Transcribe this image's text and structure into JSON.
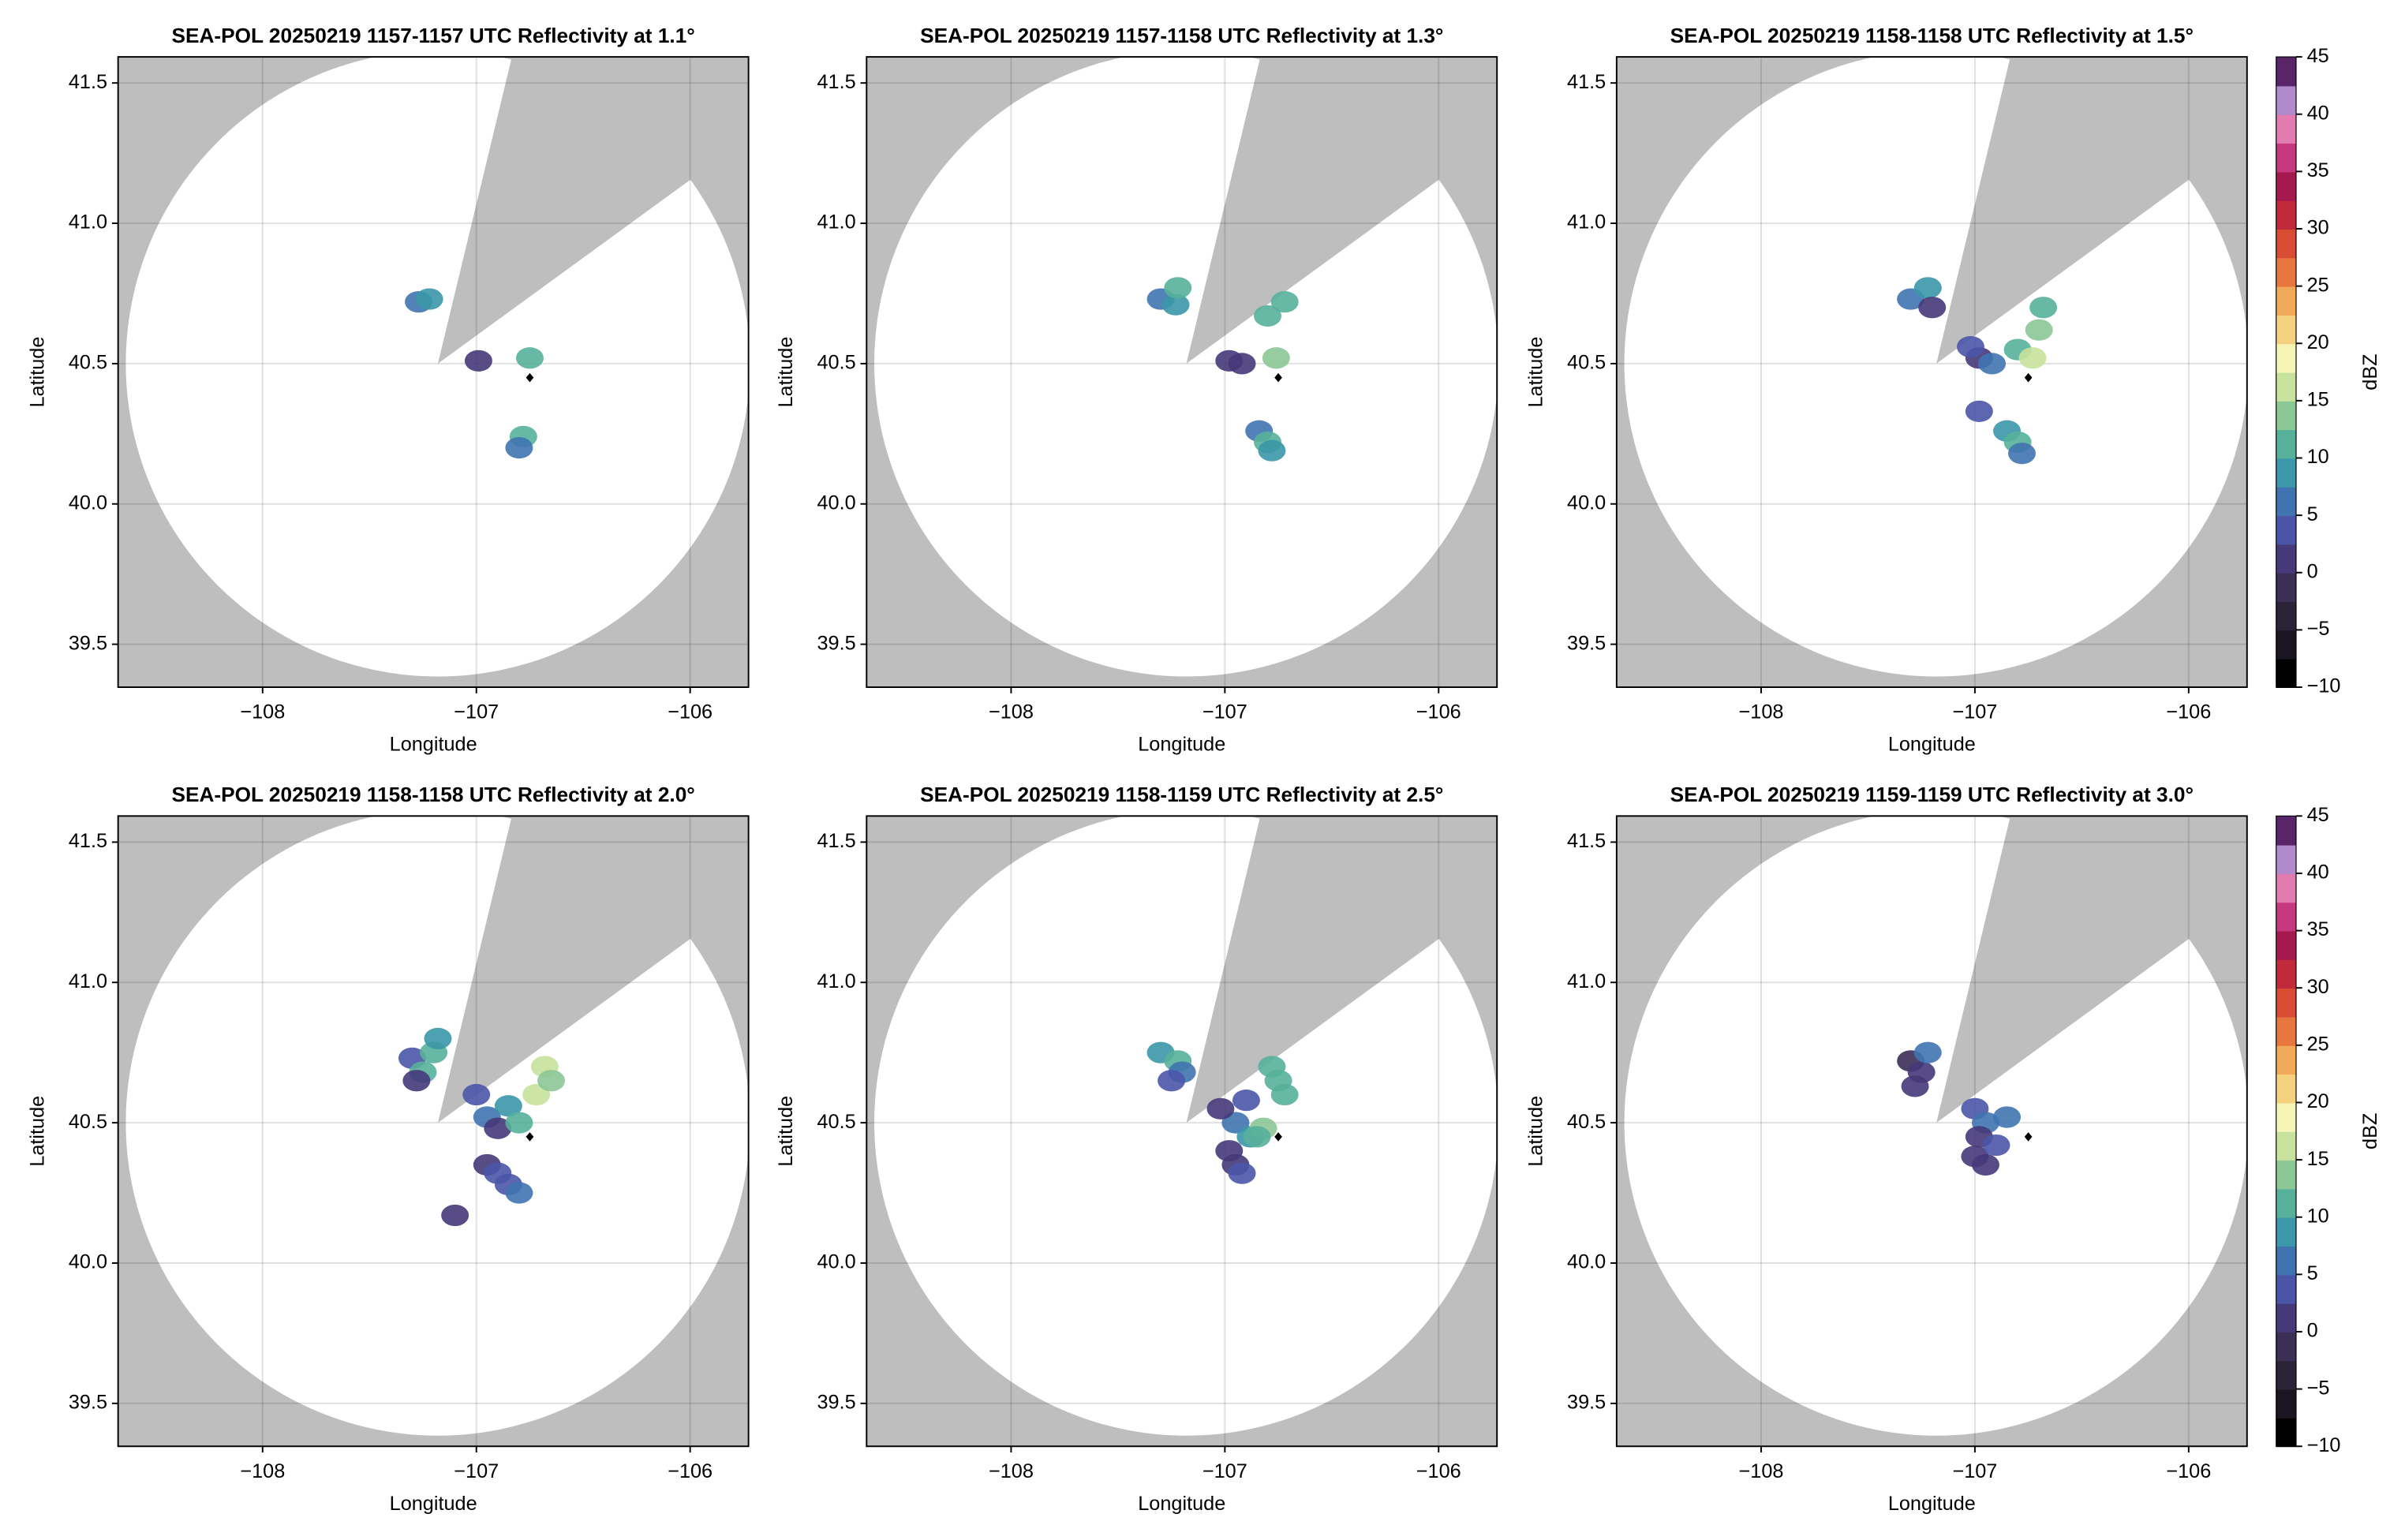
{
  "chart_data": [
    {
      "type": "radar",
      "title": "SEA-POL 20250219 1157-1157 UTC Reflectivity at 1.1°",
      "xlabel": "Longitude",
      "ylabel": "Latitude",
      "xlim": [
        -108.676,
        -105.727
      ],
      "ylim": [
        39.347,
        41.593
      ],
      "xticks": [
        {
          "value": -108,
          "label": "−108"
        },
        {
          "value": -107,
          "label": "−107"
        },
        {
          "value": -106,
          "label": "−106"
        }
      ],
      "yticks": [
        39.5,
        {
          "value": 40,
          "label": "40.0"
        },
        40.5,
        {
          "value": 41,
          "label": "41.0"
        },
        41.5
      ],
      "grid": true,
      "coverage": {
        "center": [
          -107.18,
          40.5
        ],
        "radius_deg": [
          1.46,
          1.115
        ],
        "blocked_azimuth": [
          13.6,
          54
        ]
      },
      "marker": [
        -106.75,
        40.45
      ],
      "echoes": {
        "lon": [
          -107.27,
          -107.22,
          -106.99,
          -106.78,
          -106.8,
          -106.75
        ],
        "lat": [
          40.72,
          40.73,
          40.51,
          40.24,
          40.2,
          40.52
        ],
        "values": [
          5,
          8,
          2,
          10,
          7,
          12
        ]
      }
    },
    {
      "type": "radar",
      "title": "SEA-POL 20250219 1157-1158 UTC Reflectivity at 1.3°",
      "xlabel": "Longitude",
      "ylabel": "Latitude",
      "xlim": [
        -108.676,
        -105.727
      ],
      "ylim": [
        39.347,
        41.593
      ],
      "xticks": [
        {
          "value": -108,
          "label": "−108"
        },
        {
          "value": -107,
          "label": "−107"
        },
        {
          "value": -106,
          "label": "−106"
        }
      ],
      "yticks": [
        39.5,
        {
          "value": 40,
          "label": "40.0"
        },
        40.5,
        {
          "value": 41,
          "label": "41.0"
        },
        41.5
      ],
      "grid": true,
      "coverage": {
        "center": [
          -107.18,
          40.5
        ],
        "radius_deg": [
          1.46,
          1.115
        ],
        "blocked_azimuth": [
          13.6,
          54
        ]
      },
      "marker": [
        -106.75,
        40.45
      ],
      "echoes": {
        "lon": [
          -107.3,
          -107.23,
          -107.22,
          -106.98,
          -106.92,
          -106.76,
          -106.8,
          -106.72,
          -106.84,
          -106.8,
          -106.78
        ],
        "lat": [
          40.73,
          40.71,
          40.77,
          40.51,
          40.5,
          40.52,
          40.67,
          40.72,
          40.26,
          40.22,
          40.19
        ],
        "values": [
          5,
          8,
          10,
          2,
          0,
          14,
          10,
          12,
          5,
          12,
          9
        ]
      }
    },
    {
      "type": "radar",
      "title": "SEA-POL 20250219 1158-1158 UTC Reflectivity at 1.5°",
      "xlabel": "Longitude",
      "ylabel": "Latitude",
      "xlim": [
        -108.676,
        -105.727
      ],
      "ylim": [
        39.347,
        41.593
      ],
      "xticks": [
        {
          "value": -108,
          "label": "−108"
        },
        {
          "value": -107,
          "label": "−107"
        },
        {
          "value": -106,
          "label": "−106"
        }
      ],
      "yticks": [
        39.5,
        {
          "value": 40,
          "label": "40.0"
        },
        40.5,
        {
          "value": 41,
          "label": "41.0"
        },
        41.5
      ],
      "grid": true,
      "coverage": {
        "center": [
          -107.18,
          40.5
        ],
        "radius_deg": [
          1.46,
          1.115
        ],
        "blocked_azimuth": [
          13.6,
          54
        ]
      },
      "marker": [
        -106.75,
        40.45
      ],
      "echoes": {
        "lon": [
          -107.3,
          -107.22,
          -107.2,
          -106.98,
          -107.02,
          -106.92,
          -106.8,
          -106.73,
          -106.7,
          -106.68,
          -106.98,
          -106.85,
          -106.8,
          -106.78
        ],
        "lat": [
          40.73,
          40.77,
          40.7,
          40.52,
          40.56,
          40.5,
          40.55,
          40.52,
          40.62,
          40.7,
          40.33,
          40.26,
          40.22,
          40.18
        ],
        "values": [
          5,
          8,
          2,
          0,
          3,
          5,
          12,
          17,
          14,
          12,
          3,
          8,
          10,
          6
        ]
      },
      "colorbar": {
        "label": "dBZ",
        "lim": [
          -10,
          45
        ],
        "ticks": [
          {
            "value": -10,
            "label": "−10"
          },
          {
            "value": -5,
            "label": "−5"
          },
          0,
          5,
          10,
          15,
          20,
          25,
          30,
          35,
          40,
          45
        ],
        "colors": [
          "#000000",
          "#1a1520",
          "#2b2337",
          "#3b2f55",
          "#46397a",
          "#4b55a8",
          "#3f74b0",
          "#3b97a9",
          "#57b09a",
          "#8cc796",
          "#c6e29c",
          "#f6f4b5",
          "#f4d17f",
          "#f1a95a",
          "#e8773f",
          "#d94d35",
          "#c22a3c",
          "#a51a4e",
          "#c7397f",
          "#e17bb0",
          "#b08acb",
          "#5a2468"
        ]
      }
    },
    {
      "type": "radar",
      "title": "SEA-POL 20250219 1158-1158 UTC Reflectivity at 2.0°",
      "xlabel": "Longitude",
      "ylabel": "Latitude",
      "xlim": [
        -108.676,
        -105.727
      ],
      "ylim": [
        39.347,
        41.593
      ],
      "xticks": [
        {
          "value": -108,
          "label": "−108"
        },
        {
          "value": -107,
          "label": "−107"
        },
        {
          "value": -106,
          "label": "−106"
        }
      ],
      "yticks": [
        39.5,
        {
          "value": 40,
          "label": "40.0"
        },
        40.5,
        {
          "value": 41,
          "label": "41.0"
        },
        41.5
      ],
      "grid": true,
      "coverage": {
        "center": [
          -107.18,
          40.5
        ],
        "radius_deg": [
          1.46,
          1.115
        ],
        "blocked_azimuth": [
          13.6,
          54
        ]
      },
      "marker": [
        -106.75,
        40.45
      ],
      "echoes": {
        "lon": [
          -107.3,
          -107.25,
          -107.2,
          -107.18,
          -107.28,
          -107.0,
          -106.95,
          -106.9,
          -106.85,
          -106.8,
          -106.72,
          -106.68,
          -106.65,
          -106.95,
          -106.9,
          -106.85,
          -106.8,
          -107.1
        ],
        "lat": [
          40.73,
          40.68,
          40.75,
          40.8,
          40.65,
          40.6,
          40.52,
          40.48,
          40.56,
          40.5,
          40.6,
          40.7,
          40.65,
          40.35,
          40.32,
          40.28,
          40.25,
          40.17
        ],
        "values": [
          3,
          10,
          12,
          8,
          1,
          3,
          5,
          0,
          8,
          10,
          15,
          16,
          14,
          2,
          4,
          3,
          5,
          2
        ]
      }
    },
    {
      "type": "radar",
      "title": "SEA-POL 20250219 1158-1159 UTC Reflectivity at 2.5°",
      "xlabel": "Longitude",
      "ylabel": "Latitude",
      "xlim": [
        -108.676,
        -105.727
      ],
      "ylim": [
        39.347,
        41.593
      ],
      "xticks": [
        {
          "value": -108,
          "label": "−108"
        },
        {
          "value": -107,
          "label": "−107"
        },
        {
          "value": -106,
          "label": "−106"
        }
      ],
      "yticks": [
        39.5,
        {
          "value": 40,
          "label": "40.0"
        },
        40.5,
        {
          "value": 41,
          "label": "41.0"
        },
        41.5
      ],
      "grid": true,
      "coverage": {
        "center": [
          -107.18,
          40.5
        ],
        "radius_deg": [
          1.46,
          1.115
        ],
        "blocked_azimuth": [
          13.6,
          54
        ]
      },
      "marker": [
        -106.75,
        40.45
      ],
      "echoes": {
        "lon": [
          -107.3,
          -107.22,
          -107.2,
          -107.25,
          -106.78,
          -106.75,
          -106.72,
          -106.9,
          -106.95,
          -106.88,
          -106.82,
          -106.98,
          -106.95,
          -106.92,
          -106.85,
          -107.02
        ],
        "lat": [
          40.75,
          40.72,
          40.68,
          40.65,
          40.7,
          40.65,
          40.6,
          40.58,
          40.5,
          40.45,
          40.48,
          40.4,
          40.35,
          40.32,
          40.45,
          40.55
        ],
        "values": [
          8,
          10,
          5,
          3,
          12,
          10,
          12,
          3,
          5,
          8,
          14,
          2,
          0,
          4,
          10,
          1
        ]
      }
    },
    {
      "type": "radar",
      "title": "SEA-POL 20250219 1159-1159 UTC Reflectivity at 3.0°",
      "xlabel": "Longitude",
      "ylabel": "Latitude",
      "xlim": [
        -108.676,
        -105.727
      ],
      "ylim": [
        39.347,
        41.593
      ],
      "xticks": [
        {
          "value": -108,
          "label": "−108"
        },
        {
          "value": -107,
          "label": "−107"
        },
        {
          "value": -106,
          "label": "−106"
        }
      ],
      "yticks": [
        39.5,
        {
          "value": 40,
          "label": "40.0"
        },
        40.5,
        {
          "value": 41,
          "label": "41.0"
        },
        41.5
      ],
      "grid": true,
      "coverage": {
        "center": [
          -107.18,
          40.5
        ],
        "radius_deg": [
          1.46,
          1.115
        ],
        "blocked_azimuth": [
          13.6,
          54
        ]
      },
      "marker": [
        -106.75,
        40.45
      ],
      "echoes": {
        "lon": [
          -107.3,
          -107.25,
          -107.22,
          -107.28,
          -107.0,
          -106.95,
          -106.98,
          -107.0,
          -106.95,
          -106.9,
          -106.85
        ],
        "lat": [
          40.72,
          40.68,
          40.75,
          40.63,
          40.55,
          40.5,
          40.45,
          40.38,
          40.35,
          40.42,
          40.52
        ],
        "values": [
          -1,
          2,
          5,
          0,
          3,
          5,
          1,
          0,
          2,
          4,
          6
        ]
      },
      "colorbar": {
        "label": "dBZ",
        "lim": [
          -10,
          45
        ],
        "ticks": [
          {
            "value": -10,
            "label": "−10"
          },
          {
            "value": -5,
            "label": "−5"
          },
          0,
          5,
          10,
          15,
          20,
          25,
          30,
          35,
          40,
          45
        ],
        "colors": [
          "#000000",
          "#1a1520",
          "#2b2337",
          "#3b2f55",
          "#46397a",
          "#4b55a8",
          "#3f74b0",
          "#3b97a9",
          "#57b09a",
          "#8cc796",
          "#c6e29c",
          "#f6f4b5",
          "#f4d17f",
          "#f1a95a",
          "#e8773f",
          "#d94d35",
          "#c22a3c",
          "#a51a4e",
          "#c7397f",
          "#e17bb0",
          "#b08acb",
          "#5a2468"
        ]
      }
    }
  ]
}
